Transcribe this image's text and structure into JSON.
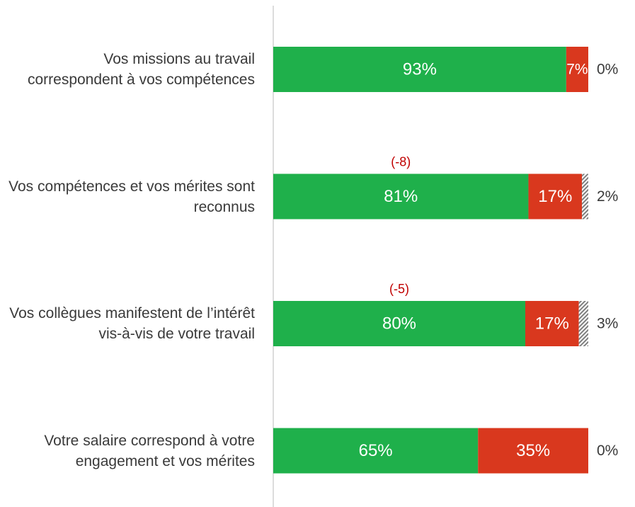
{
  "chart_data": {
    "type": "stacked_barh",
    "categories": [
      "Vos missions au travail correspondent à vos compétences",
      "Vos compétences et vos mérites sont reconnus",
      "Vos collègues manifestent de l’intérêt vis-à-vis de votre travail",
      "Votre salaire correspond à votre engagement et vos mérites"
    ],
    "series": [
      {
        "color": "#1fb04b",
        "values": [
          93,
          81,
          80,
          65
        ],
        "value_labels": [
          "93%",
          "81%",
          "80%",
          "65%"
        ]
      },
      {
        "color": "#d9381e",
        "values": [
          7,
          17,
          17,
          35
        ],
        "value_labels": [
          "7%",
          "17%",
          "17%",
          "35%"
        ]
      },
      {
        "color": "#7f7f7f",
        "pattern": "hatch",
        "values": [
          0,
          2,
          3,
          0
        ],
        "value_labels": [
          "0%",
          "2%",
          "3%",
          "0%"
        ]
      }
    ],
    "annotations": [
      null,
      "(-8)",
      "(-5)",
      null
    ],
    "xlim": [
      0,
      100
    ]
  }
}
